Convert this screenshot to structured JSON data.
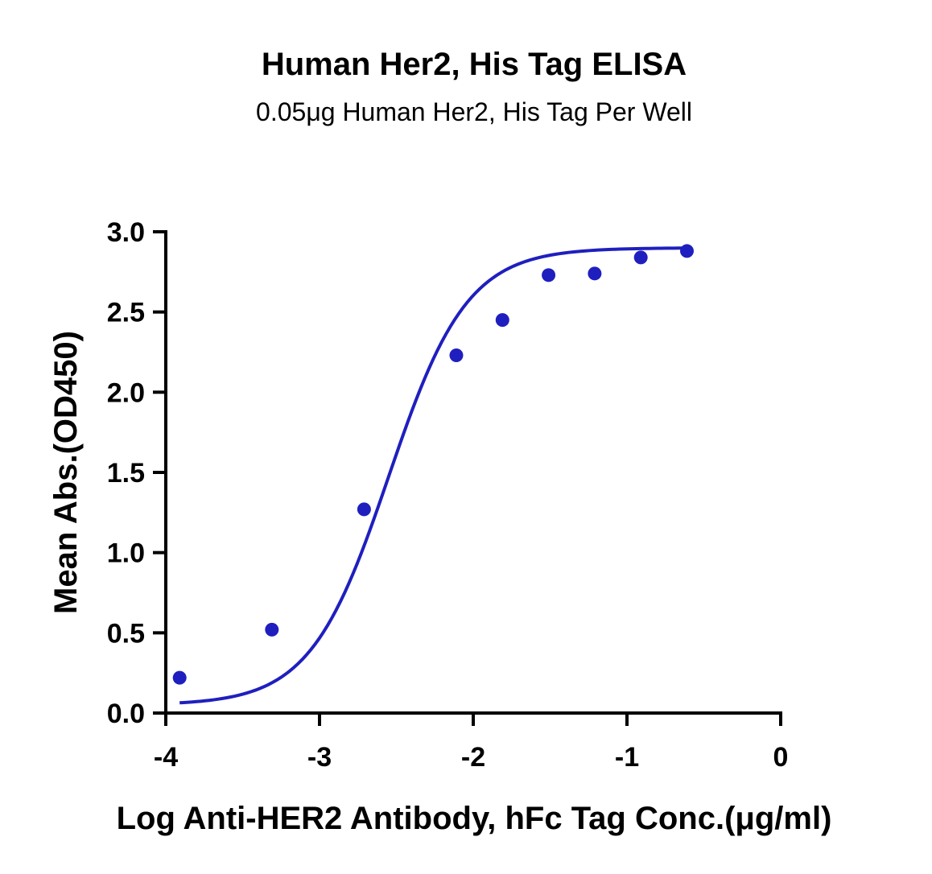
{
  "chart_data": {
    "type": "scatter",
    "title": "Human Her2, His Tag ELISA",
    "subtitle": "0.05μg Human Her2, His Tag Per Well",
    "xlabel": "Log Anti-HER2 Antibody, hFc Tag Conc.(μg/ml)",
    "ylabel": "Mean Abs.(OD450)",
    "xlim": [
      -4,
      0
    ],
    "ylim": [
      0,
      3.0
    ],
    "x_ticks": [
      -4,
      -3,
      -2,
      -1,
      0
    ],
    "x_tick_labels": [
      "-4",
      "-3",
      "-2",
      "-1",
      "0"
    ],
    "y_ticks": [
      0,
      0.5,
      1.0,
      1.5,
      2.0,
      2.5,
      3.0
    ],
    "y_tick_labels": [
      "0.0",
      "0.5",
      "1.0",
      "1.5",
      "2.0",
      "2.5",
      "3.0"
    ],
    "grid": false,
    "legend": "none",
    "series": [
      {
        "x": [
          -3.91,
          -3.31,
          -2.71,
          -2.11,
          -1.81,
          -1.51,
          -1.21,
          -0.91,
          -0.61
        ],
        "y": [
          0.22,
          0.52,
          1.27,
          2.23,
          2.45,
          2.73,
          2.74,
          2.84,
          2.88
        ],
        "color": "#1f1fbf",
        "fit": "4PL",
        "fit_params": {
          "bottom": 0.05,
          "top": 2.9,
          "logEC50": -2.55,
          "hill": 1.7
        },
        "fit_range": [
          -3.91,
          -0.61
        ]
      }
    ]
  }
}
